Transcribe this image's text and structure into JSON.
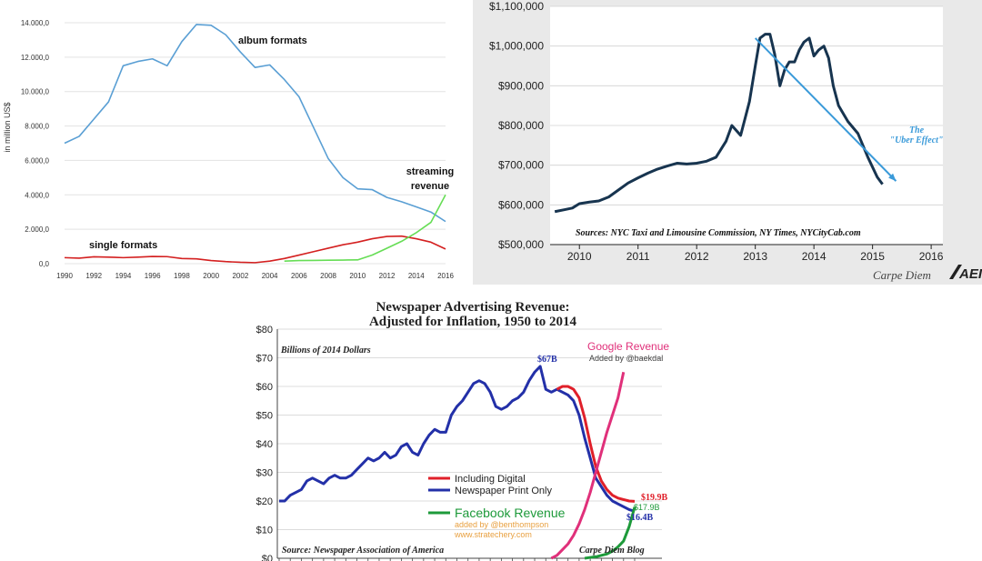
{
  "chart_data": [
    {
      "type": "line",
      "title": "",
      "xlabel": "",
      "ylabel": "in million US$",
      "xlim": [
        1990,
        2016
      ],
      "ylim": [
        0,
        14000
      ],
      "y_ticks": [
        "0,0",
        "2.000,0",
        "4.000,0",
        "6.000,0",
        "8.000,0",
        "10.000,0",
        "12.000,0",
        "14.000,0"
      ],
      "x_ticks": [
        "1990",
        "1992",
        "1994",
        "1996",
        "1998",
        "2000",
        "2002",
        "2004",
        "2006",
        "2008",
        "2010",
        "2012",
        "2014",
        "2016"
      ],
      "grid": true,
      "colors": {
        "album": "#5a9fd4",
        "single": "#d42020",
        "streaming": "#66dd55"
      },
      "series": [
        {
          "name": "album formats",
          "color": "#5a9fd4",
          "x": [
            1990,
            1991,
            1992,
            1993,
            1994,
            1995,
            1996,
            1997,
            1998,
            1999,
            2000,
            2001,
            2002,
            2003,
            2004,
            2005,
            2006,
            2007,
            2008,
            2009,
            2010,
            2011,
            2012,
            2013,
            2014,
            2015,
            2016
          ],
          "y": [
            7000,
            7400,
            8400,
            9400,
            11500,
            11750,
            11900,
            11500,
            12900,
            13900,
            13850,
            13300,
            12300,
            11400,
            11550,
            10700,
            9700,
            7900,
            6100,
            5000,
            4350,
            4300,
            3850,
            3600,
            3300,
            3000,
            2450
          ]
        },
        {
          "name": "single formats",
          "color": "#d42020",
          "x": [
            1990,
            1991,
            1992,
            1993,
            1994,
            1995,
            1996,
            1997,
            1998,
            1999,
            2000,
            2001,
            2002,
            2003,
            2004,
            2005,
            2006,
            2007,
            2008,
            2009,
            2010,
            2011,
            2012,
            2013,
            2014,
            2015,
            2016
          ],
          "y": [
            350,
            320,
            400,
            380,
            350,
            380,
            420,
            410,
            300,
            280,
            180,
            120,
            80,
            60,
            150,
            300,
            500,
            700,
            900,
            1100,
            1250,
            1450,
            1580,
            1600,
            1450,
            1250,
            850
          ]
        },
        {
          "name": "streaming revenue",
          "color": "#66dd55",
          "x": [
            2005,
            2006,
            2007,
            2008,
            2009,
            2010,
            2011,
            2012,
            2013,
            2014,
            2015,
            2016
          ],
          "y": [
            150,
            180,
            190,
            200,
            210,
            220,
            500,
            900,
            1300,
            1800,
            2400,
            4000
          ]
        }
      ],
      "annotations": [
        "album formats",
        "single formats",
        "streaming revenue"
      ]
    },
    {
      "type": "line",
      "title": "",
      "xlabel": "",
      "ylabel": "",
      "xlim": [
        2009.5,
        2016.2
      ],
      "ylim": [
        500000,
        1100000
      ],
      "y_ticks": [
        "$500,000",
        "$600,000",
        "$700,000",
        "$800,000",
        "$900,000",
        "$1,000,000",
        "$1,100,000"
      ],
      "x_ticks": [
        "2010",
        "2011",
        "2012",
        "2013",
        "2014",
        "2015",
        "2016"
      ],
      "grid": true,
      "colors": {
        "line": "#17344f",
        "trend": "#3a9ad9"
      },
      "series": [
        {
          "name": "",
          "color": "#17344f",
          "x": [
            2009.58,
            2009.75,
            2009.88,
            2010.0,
            2010.17,
            2010.33,
            2010.5,
            2010.67,
            2010.83,
            2011.0,
            2011.17,
            2011.33,
            2011.5,
            2011.67,
            2011.83,
            2012.0,
            2012.17,
            2012.33,
            2012.5,
            2012.6,
            2012.75,
            2012.9,
            2013.0,
            2013.08,
            2013.17,
            2013.25,
            2013.33,
            2013.42,
            2013.5,
            2013.58,
            2013.67,
            2013.75,
            2013.83,
            2013.92,
            2014.0,
            2014.08,
            2014.17,
            2014.25,
            2014.33,
            2014.42,
            2014.58,
            2014.75,
            2014.92,
            2015.08,
            2015.17
          ],
          "y": [
            583000,
            588000,
            592000,
            603000,
            607000,
            610000,
            620000,
            638000,
            655000,
            668000,
            680000,
            690000,
            698000,
            705000,
            703000,
            705000,
            710000,
            720000,
            760000,
            800000,
            775000,
            860000,
            950000,
            1020000,
            1030000,
            1030000,
            980000,
            900000,
            940000,
            960000,
            960000,
            990000,
            1010000,
            1020000,
            975000,
            990000,
            1000000,
            970000,
            900000,
            850000,
            810000,
            780000,
            720000,
            670000,
            652000
          ]
        },
        {
          "name": "",
          "color": "#3a9ad9",
          "style": "arrow",
          "x": [
            2013.0,
            2015.4
          ],
          "y": [
            1020000,
            660000
          ]
        }
      ],
      "annotations": [
        "The \"Uber Effect\"",
        "Sources: NYC Taxi and Limousine Commission, NY Times, NYCityCab.com"
      ],
      "watermark": "Carpe Diem",
      "logo": "AEI"
    },
    {
      "type": "line",
      "title": "Newspaper Advertising Revenue:",
      "subtitle": "Adjusted for Inflation, 1950 to 2014",
      "xlabel": "",
      "ylabel": "Billions of 2014 Dollars",
      "xlim": [
        1950,
        2014
      ],
      "ylim": [
        0,
        80
      ],
      "y_ticks": [
        "$0",
        "$10",
        "$20",
        "$30",
        "$40",
        "$50",
        "$60",
        "$70",
        "$80"
      ],
      "grid": true,
      "colors": {
        "print": "#2330a8",
        "digital": "#e0202a",
        "google": "#e0307a",
        "facebook": "#1d9a3a"
      },
      "series": [
        {
          "name": "Newspaper Print Only",
          "color": "#2330a8",
          "x": [
            1950,
            1951,
            1952,
            1953,
            1954,
            1955,
            1956,
            1957,
            1958,
            1959,
            1960,
            1961,
            1962,
            1963,
            1964,
            1965,
            1966,
            1967,
            1968,
            1969,
            1970,
            1971,
            1972,
            1973,
            1974,
            1975,
            1976,
            1977,
            1978,
            1979,
            1980,
            1981,
            1982,
            1983,
            1984,
            1985,
            1986,
            1987,
            1988,
            1989,
            1990,
            1991,
            1992,
            1993,
            1994,
            1995,
            1996,
            1997,
            1998,
            1999,
            2000,
            2001,
            2002,
            2003,
            2004,
            2005,
            2006,
            2007,
            2008,
            2009,
            2010,
            2011,
            2012,
            2013,
            2014
          ],
          "y": [
            20,
            20,
            22,
            23,
            24,
            27,
            28,
            27,
            26,
            28,
            29,
            28,
            28,
            29,
            31,
            33,
            35,
            34,
            35,
            37,
            35,
            36,
            39,
            40,
            37,
            36,
            40,
            43,
            45,
            44,
            44,
            50,
            53,
            55,
            58,
            61,
            62,
            61,
            58,
            53,
            52,
            53,
            55,
            56,
            58,
            62,
            65,
            67,
            59,
            58,
            59,
            58,
            57,
            55,
            50,
            42,
            35,
            28,
            25,
            22,
            20,
            19,
            18,
            17,
            16.4
          ]
        },
        {
          "name": "Including Digital",
          "color": "#e0202a",
          "x": [
            2000,
            2001,
            2002,
            2003,
            2004,
            2005,
            2006,
            2007,
            2008,
            2009,
            2010,
            2011,
            2012,
            2013,
            2014
          ],
          "y": [
            59,
            60,
            60,
            59,
            56,
            49,
            40,
            32,
            27,
            24,
            22,
            21,
            20.5,
            20,
            19.9
          ]
        },
        {
          "name": "Google Revenue",
          "color": "#e0307a",
          "x": [
            1999,
            2000,
            2001,
            2002,
            2003,
            2004,
            2005,
            2006,
            2007,
            2008,
            2009,
            2010,
            2011,
            2012
          ],
          "y": [
            0,
            1,
            3,
            5,
            8,
            12,
            17,
            23,
            30,
            37,
            44,
            50,
            56,
            65
          ]
        },
        {
          "name": "Facebook Revenue",
          "color": "#1d9a3a",
          "x": [
            2005,
            2006,
            2007,
            2008,
            2009,
            2010,
            2011,
            2012,
            2013,
            2014
          ],
          "y": [
            0,
            0.3,
            0.5,
            1,
            1.5,
            2.5,
            4,
            6,
            11,
            17.9
          ]
        }
      ],
      "annotations": [
        "$67B",
        "$19.9B",
        "$17.9B",
        "$16.4B",
        "Google Revenue",
        "Added by @baekdal",
        "Facebook Revenue",
        "added by @benthompson",
        "www.stratechery.com",
        "Source: Newspaper Association of America",
        "Carpe Diem Blog"
      ],
      "legend": [
        "Including Digital",
        "Newspaper Print Only"
      ]
    }
  ]
}
